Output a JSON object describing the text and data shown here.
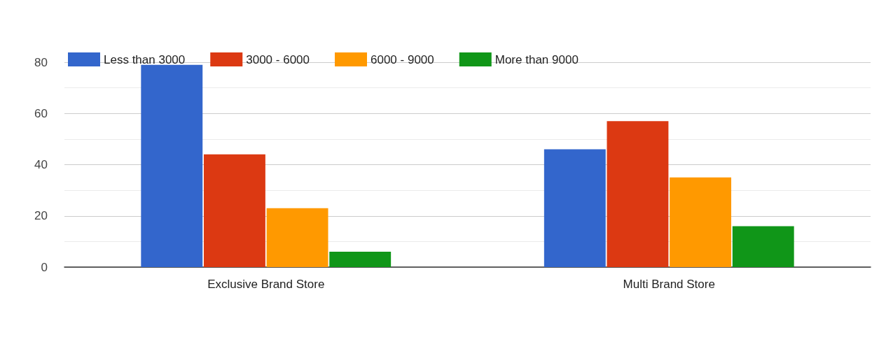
{
  "chart_data": {
    "type": "bar",
    "categories": [
      "Exclusive Brand Store",
      "Multi Brand Store"
    ],
    "series": [
      {
        "name": "Less than 3000",
        "color": "#3366cc",
        "values": [
          79,
          46
        ]
      },
      {
        "name": "3000 - 6000",
        "color": "#dc3912",
        "values": [
          44,
          57
        ]
      },
      {
        "name": "6000 - 9000",
        "color": "#ff9900",
        "values": [
          23,
          35
        ]
      },
      {
        "name": "More than 9000",
        "color": "#109618",
        "values": [
          6,
          16
        ]
      }
    ],
    "ylim": [
      0,
      80
    ],
    "yticks": [
      0,
      20,
      40,
      60,
      80
    ],
    "grid": "y",
    "legend": "top left"
  }
}
